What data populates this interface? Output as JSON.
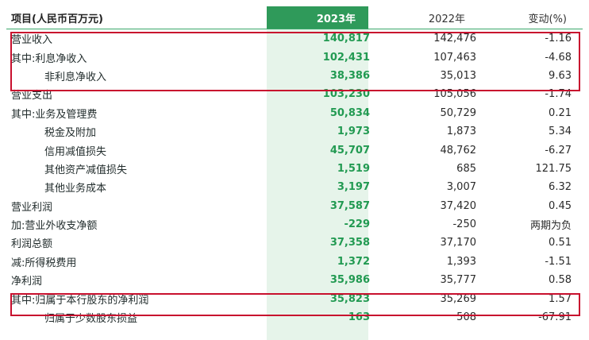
{
  "header": {
    "item": "项目(人民币百万元)",
    "y2023": "2023年",
    "y2022": "2022年",
    "change": "变动(%)"
  },
  "rows": [
    {
      "item": "营业收入",
      "y2023": "140,817",
      "y2022": "142,476",
      "change": "-1.16"
    },
    {
      "item": "其中:利息净收入",
      "y2023": "102,431",
      "y2022": "107,463",
      "change": "-4.68"
    },
    {
      "item": "非利息净收入",
      "y2023": "38,386",
      "y2022": "35,013",
      "change": "9.63"
    },
    {
      "item": "营业支出",
      "y2023": "103,230",
      "y2022": "105,056",
      "change": "-1.74"
    },
    {
      "item": "其中:业务及管理费",
      "y2023": "50,834",
      "y2022": "50,729",
      "change": "0.21"
    },
    {
      "item": "税金及附加",
      "y2023": "1,973",
      "y2022": "1,873",
      "change": "5.34"
    },
    {
      "item": "信用减值损失",
      "y2023": "45,707",
      "y2022": "48,762",
      "change": "-6.27"
    },
    {
      "item": "其他资产减值损失",
      "y2023": "1,519",
      "y2022": "685",
      "change": "121.75"
    },
    {
      "item": "其他业务成本",
      "y2023": "3,197",
      "y2022": "3,007",
      "change": "6.32"
    },
    {
      "item": "营业利润",
      "y2023": "37,587",
      "y2022": "37,420",
      "change": "0.45"
    },
    {
      "item": "加:营业外收支净额",
      "y2023": "-229",
      "y2022": "-250",
      "change": "两期为负"
    },
    {
      "item": "利润总额",
      "y2023": "37,358",
      "y2022": "37,170",
      "change": "0.51"
    },
    {
      "item": "减:所得税费用",
      "y2023": "1,372",
      "y2022": "1,393",
      "change": "-1.51"
    },
    {
      "item": "净利润",
      "y2023": "35,986",
      "y2022": "35,777",
      "change": "0.58"
    },
    {
      "item": "其中:归属于本行股东的净利润",
      "y2023": "35,823",
      "y2022": "35,269",
      "change": "1.57"
    },
    {
      "item": "归属于少数股东损益",
      "y2023": "163",
      "y2022": "508",
      "change": "-67.91"
    }
  ],
  "colors": {
    "highlight_border": "#c8102e",
    "accent_green": "#229a52",
    "header_green": "#2f9a5a",
    "column_shade": "#e6f4ea"
  }
}
